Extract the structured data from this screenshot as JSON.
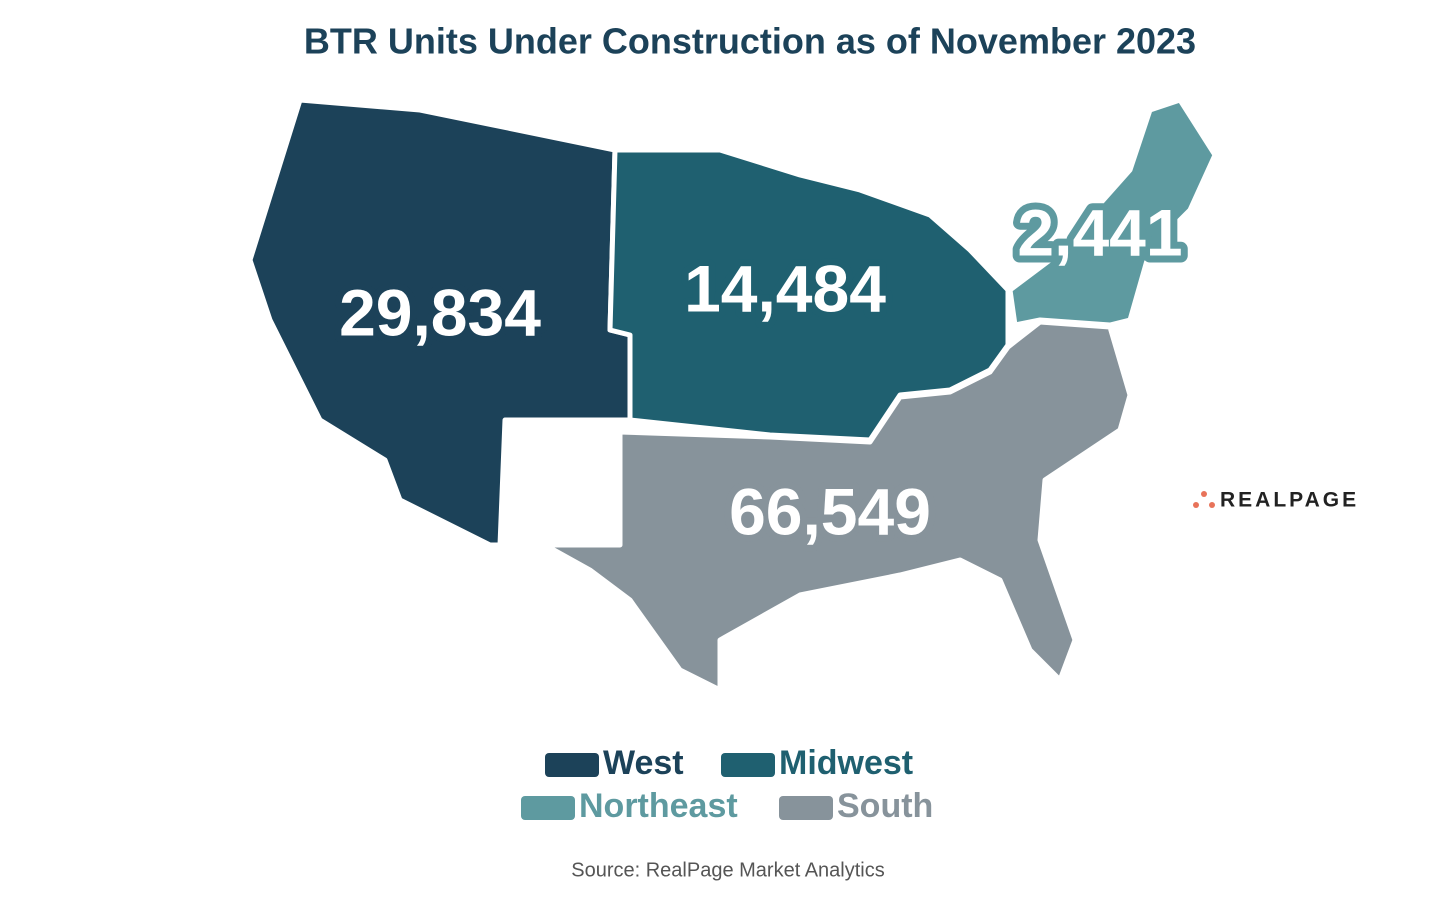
{
  "title": "BTR Units Under Construction as of November 2023",
  "regions": [
    {
      "name": "West",
      "color": "#1c4259",
      "label": "29,834"
    },
    {
      "name": "Midwest",
      "color": "#1f6070",
      "label": "14,484"
    },
    {
      "name": "Northeast",
      "color": "#5e9aa0",
      "label": "2,441"
    },
    {
      "name": "South",
      "color": "#87939b",
      "label": "66,549"
    }
  ],
  "logo": "REALPAGE",
  "source": "Source: RealPage Market Analytics"
}
